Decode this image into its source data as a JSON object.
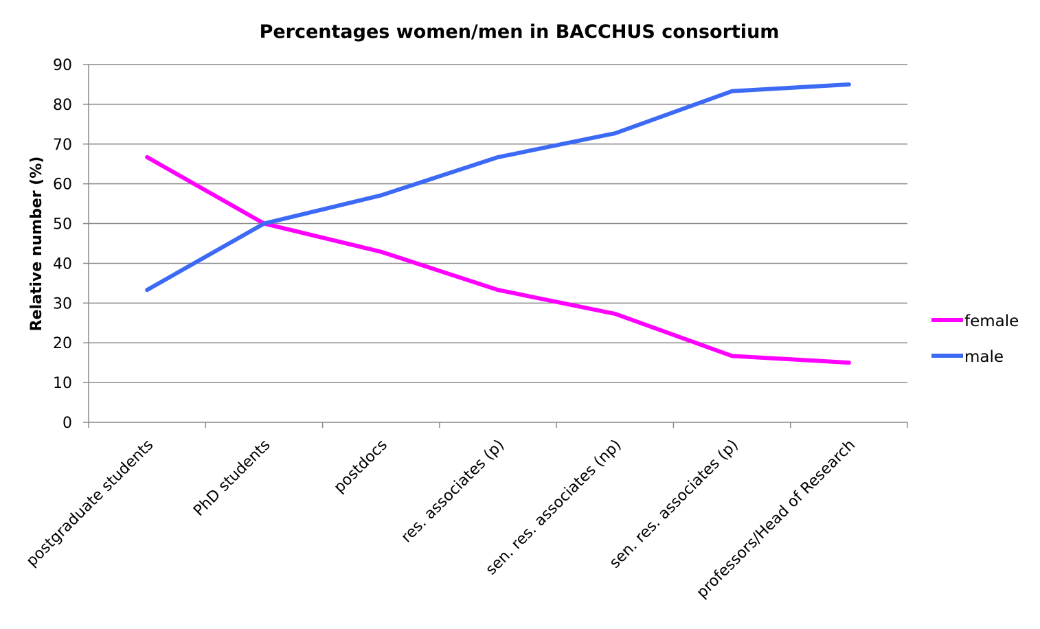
{
  "chart_data": {
    "type": "line",
    "title": "Percentages women/men in BACCHUS consortium",
    "xlabel": "",
    "ylabel": "Relative number (%)",
    "ylim": [
      0,
      90
    ],
    "yticks": [
      0,
      10,
      20,
      30,
      40,
      50,
      60,
      70,
      80,
      90
    ],
    "grid": true,
    "legend": "right",
    "categories": [
      "postgraduate students",
      "PhD students",
      "postdocs",
      "res. associates (p)",
      "sen. res. associates (np)",
      "sen. res. associates (p)",
      "professors/Head of Research"
    ],
    "series": [
      {
        "name": "female",
        "color": "#ff00ff",
        "values": [
          66.7,
          50,
          42.9,
          33.3,
          27.3,
          16.7,
          15
        ]
      },
      {
        "name": "male",
        "color": "#3d6af5",
        "values": [
          33.3,
          50,
          57.1,
          66.7,
          72.7,
          83.3,
          85
        ]
      }
    ]
  }
}
